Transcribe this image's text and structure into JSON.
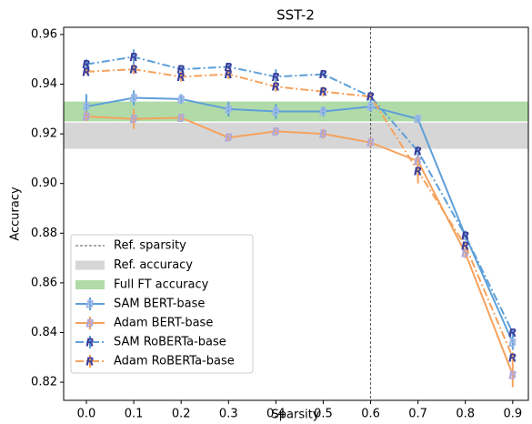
{
  "chart_data": {
    "type": "line",
    "title": "SST-2",
    "x_label": "Sparsity",
    "y_label": "Accuracy",
    "x": [
      0,
      0.1,
      0.2,
      0.3,
      0.4,
      0.5,
      0.6,
      0.7,
      0.8,
      0.9
    ],
    "xlim": [
      -0.048,
      0.933
    ],
    "xticks": [
      {
        "value": 0,
        "label": "0.0"
      },
      0.1,
      0.2,
      0.3,
      0.4,
      0.5,
      0.6,
      0.7,
      0.8,
      0.9
    ],
    "ylim": [
      0.8127,
      0.9629
    ],
    "yticks": [
      0.82,
      0.84,
      0.86,
      0.88,
      {
        "value": 0.9,
        "label": "0.90"
      },
      0.92,
      0.94,
      0.96
    ],
    "legend": "lower left",
    "ref_sparsity": {
      "label": "Ref. sparsity",
      "x": 0.6,
      "color": "#555555"
    },
    "bands": [
      {
        "name": "Ref. accuracy",
        "color": "#d6d6d6",
        "range": [
          0.914,
          0.9245
        ]
      },
      {
        "name": "Full FT accuracy",
        "color": "#b0dba8",
        "range": [
          0.925,
          0.933
        ]
      }
    ],
    "series": [
      {
        "name": "SAM BERT-base",
        "color": "#5e9fd8",
        "dash": "solid",
        "marker": "B",
        "marker_color": "#9db8e8",
        "values": [
          0.931,
          0.9345,
          0.934,
          0.93,
          0.929,
          0.929,
          0.931,
          0.926,
          0.879,
          0.836
        ],
        "errors": [
          0.005,
          0.003,
          0.002,
          0.003,
          0.003,
          0.002,
          0.002,
          0.001,
          0.002,
          0.003
        ]
      },
      {
        "name": "Adam BERT-base",
        "color": "#f5a25d",
        "dash": "solid",
        "marker": "B",
        "marker_color": "#b0a8d8",
        "values": [
          0.927,
          0.926,
          0.9265,
          0.9185,
          0.921,
          0.92,
          0.9165,
          0.909,
          0.872,
          0.823
        ],
        "errors": [
          0.002,
          0.004,
          0.001,
          0.001,
          0.001,
          0.002,
          0.002,
          0.006,
          0.002,
          0.005
        ]
      },
      {
        "name": "SAM RoBERTa-base",
        "color": "#5e9fd8",
        "dash": "dashdot",
        "marker": "R",
        "marker_color": "#3b3f9c",
        "values": [
          0.948,
          0.951,
          0.946,
          0.947,
          0.943,
          0.944,
          0.935,
          0.913,
          0.879,
          0.84
        ],
        "errors": [
          0.002,
          0.003,
          0.001,
          0.001,
          0.003,
          0.001,
          0.002,
          0.002,
          0.001,
          0.001
        ]
      },
      {
        "name": "Adam RoBERTa-base",
        "color": "#f5a25d",
        "dash": "dashdot",
        "marker": "R",
        "marker_color": "#3b3f9c",
        "values": [
          0.945,
          0.946,
          0.943,
          0.944,
          0.939,
          0.937,
          0.935,
          0.905,
          0.875,
          0.83
        ],
        "errors": [
          0.001,
          0.002,
          0.002,
          0.002,
          0.002,
          0.002,
          0.001,
          0.005,
          0.001,
          0.002
        ]
      }
    ]
  }
}
